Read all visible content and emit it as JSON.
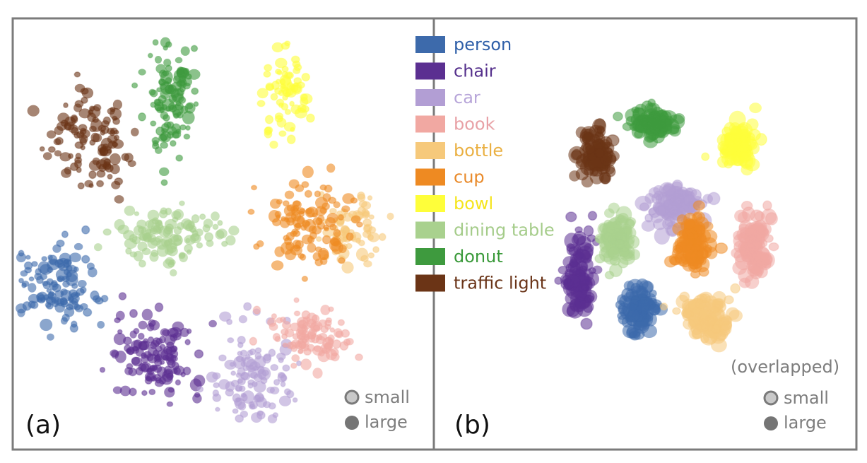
{
  "panels": [
    {
      "label": "(a)",
      "note": "",
      "size_legend": {
        "small": "small",
        "large": "large"
      }
    },
    {
      "label": "(b)",
      "note": "(overlapped)",
      "size_legend": {
        "small": "small",
        "large": "large"
      }
    }
  ],
  "legend": [
    {
      "name": "person",
      "color": "#3d6aab",
      "text_color": "#2f5fa8"
    },
    {
      "name": "chair",
      "color": "#5b2f91",
      "text_color": "#55308c"
    },
    {
      "name": "car",
      "color": "#b29ed4",
      "text_color": "#b7a5d9"
    },
    {
      "name": "book",
      "color": "#f1a8a2",
      "text_color": "#e8a1a6"
    },
    {
      "name": "bottle",
      "color": "#f6c97b",
      "text_color": "#eab042"
    },
    {
      "name": "cup",
      "color": "#ee8a22",
      "text_color": "#e98a2a"
    },
    {
      "name": "bowl",
      "color": "#fefe3a",
      "text_color": "#f5e51d"
    },
    {
      "name": "dining table",
      "color": "#a9d18e",
      "text_color": "#a5cc8a"
    },
    {
      "name": "donut",
      "color": "#3e9a3e",
      "text_color": "#3a9a3a"
    },
    {
      "name": "traffic light",
      "color": "#6b3416",
      "text_color": "#6a3418"
    }
  ],
  "chart_data": [
    {
      "type": "scatter",
      "title": "",
      "xlabel": "",
      "ylabel": "",
      "grid": false,
      "legend_position": "right",
      "series": [
        {
          "name": "person",
          "cluster_center": [
            -2.5,
            -0.6
          ],
          "spread": [
            0.55,
            0.45
          ],
          "n": 120
        },
        {
          "name": "chair",
          "cluster_center": [
            -1.1,
            -1.5
          ],
          "spread": [
            0.6,
            0.45
          ],
          "n": 130
        },
        {
          "name": "car",
          "cluster_center": [
            0.4,
            -1.7
          ],
          "spread": [
            0.55,
            0.6
          ],
          "n": 110
        },
        {
          "name": "book",
          "cluster_center": [
            1.3,
            -1.2
          ],
          "spread": [
            0.5,
            0.35
          ],
          "n": 100
        },
        {
          "name": "bottle",
          "cluster_center": [
            1.9,
            0.1
          ],
          "spread": [
            0.4,
            0.35
          ],
          "n": 70
        },
        {
          "name": "cup",
          "cluster_center": [
            1.2,
            0.2
          ],
          "spread": [
            0.65,
            0.45
          ],
          "n": 110
        },
        {
          "name": "bowl",
          "cluster_center": [
            0.9,
            1.8
          ],
          "spread": [
            0.3,
            0.6
          ],
          "n": 70
        },
        {
          "name": "dining table",
          "cluster_center": [
            -0.8,
            0.0
          ],
          "spread": [
            0.75,
            0.3
          ],
          "n": 110
        },
        {
          "name": "donut",
          "cluster_center": [
            -0.8,
            1.7
          ],
          "spread": [
            0.35,
            0.6
          ],
          "n": 110
        },
        {
          "name": "traffic light",
          "cluster_center": [
            -2.0,
            1.2
          ],
          "spread": [
            0.55,
            0.5
          ],
          "n": 110
        }
      ]
    },
    {
      "type": "scatter",
      "title": "",
      "xlabel": "",
      "ylabel": "",
      "grid": false,
      "series": [
        {
          "name": "person",
          "cluster_center": [
            -0.1,
            -1.1
          ],
          "spread": [
            0.25,
            0.3
          ],
          "n": 110
        },
        {
          "name": "chair",
          "cluster_center": [
            -1.2,
            -0.6
          ],
          "spread": [
            0.25,
            0.55
          ],
          "n": 110
        },
        {
          "name": "car",
          "cluster_center": [
            0.5,
            0.5
          ],
          "spread": [
            0.45,
            0.3
          ],
          "n": 110
        },
        {
          "name": "book",
          "cluster_center": [
            1.9,
            -0.1
          ],
          "spread": [
            0.25,
            0.4
          ],
          "n": 110
        },
        {
          "name": "bottle",
          "cluster_center": [
            1.1,
            -1.2
          ],
          "spread": [
            0.4,
            0.3
          ],
          "n": 110
        },
        {
          "name": "cup",
          "cluster_center": [
            0.8,
            -0.1
          ],
          "spread": [
            0.3,
            0.35
          ],
          "n": 110
        },
        {
          "name": "bowl",
          "cluster_center": [
            1.6,
            1.4
          ],
          "spread": [
            0.3,
            0.3
          ],
          "n": 90
        },
        {
          "name": "dining table",
          "cluster_center": [
            -0.5,
            0.0
          ],
          "spread": [
            0.25,
            0.35
          ],
          "n": 110
        },
        {
          "name": "donut",
          "cluster_center": [
            0.1,
            1.8
          ],
          "spread": [
            0.35,
            0.2
          ],
          "n": 110
        },
        {
          "name": "traffic light",
          "cluster_center": [
            -0.9,
            1.3
          ],
          "spread": [
            0.3,
            0.35
          ],
          "n": 110
        }
      ]
    }
  ]
}
